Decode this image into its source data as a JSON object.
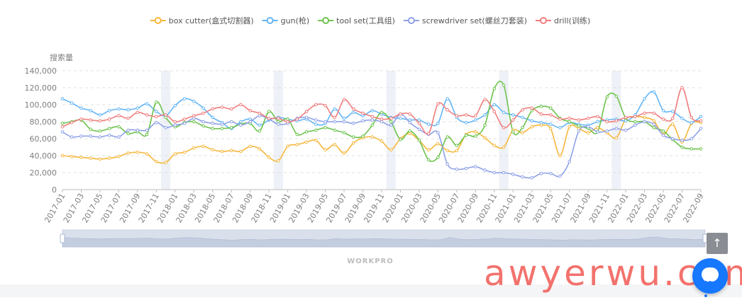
{
  "colors": {
    "box_cutter": "#f6b73c",
    "gun": "#64b5f6",
    "tool_set": "#6cc34d",
    "screwdriver_set": "#8fa2e8",
    "drill": "#f07d7d",
    "axis_text": "#7f7f7f",
    "grid": "#e0e0e0",
    "highlight_band": "#eef1f7",
    "zoom_fill": "#d9e0ec",
    "zoom_handle": "#a8b8d0",
    "watermark": "#f15a54"
  },
  "brand_label": "WORKPRO",
  "watermark_text": "awyerwu.com",
  "back_to_top_icon": "arrow-up-icon",
  "chat_icon": "chat-bubble-icon",
  "chart_data": {
    "type": "line",
    "title": "",
    "ylabel": "搜索量",
    "xlabel": "",
    "ylim": [
      0,
      140000
    ],
    "yticks": [
      "0",
      "20,000",
      "40,000",
      "60,000",
      "80,000",
      "100,000",
      "120,000",
      "140,000"
    ],
    "ytick_values": [
      0,
      20000,
      40000,
      60000,
      80000,
      100000,
      120000,
      140000
    ],
    "legend_position": "top-center",
    "grid": "horizontal dashed",
    "x": [
      "2017-01",
      "2017-02",
      "2017-03",
      "2017-04",
      "2017-05",
      "2017-06",
      "2017-07",
      "2017-08",
      "2017-09",
      "2017-10",
      "2017-11",
      "2017-12",
      "2018-01",
      "2018-02",
      "2018-03",
      "2018-04",
      "2018-05",
      "2018-06",
      "2018-07",
      "2018-08",
      "2018-09",
      "2018-10",
      "2018-11",
      "2018-12",
      "2019-01",
      "2019-02",
      "2019-03",
      "2019-04",
      "2019-05",
      "2019-06",
      "2019-07",
      "2019-08",
      "2019-09",
      "2019-10",
      "2019-11",
      "2019-12",
      "2020-01",
      "2020-02",
      "2020-03",
      "2020-04",
      "2020-05",
      "2020-06",
      "2020-07",
      "2020-08",
      "2020-09",
      "2020-10",
      "2020-11",
      "2020-12",
      "2021-01",
      "2021-02",
      "2021-03",
      "2021-04",
      "2021-05",
      "2021-06",
      "2021-07",
      "2021-08",
      "2021-09",
      "2021-10",
      "2021-11",
      "2021-12",
      "2022-01",
      "2022-02",
      "2022-03",
      "2022-04",
      "2022-05",
      "2022-06",
      "2022-07",
      "2022-08",
      "2022-09"
    ],
    "xtick_labels": [
      "2017-01",
      "2017-03",
      "2017-05",
      "2017-07",
      "2017-09",
      "2017-11",
      "2018-01",
      "2018-03",
      "2018-05",
      "2018-07",
      "2018-09",
      "2018-11",
      "2019-01",
      "2019-03",
      "2019-05",
      "2019-07",
      "2019-09",
      "2019-11",
      "2020-01",
      "2020-03",
      "2020-05",
      "2020-07",
      "2020-09",
      "2020-11",
      "2021-01",
      "2021-03",
      "2021-05",
      "2021-07",
      "2021-09",
      "2021-11",
      "2022-01",
      "2022-03",
      "2022-05",
      "2022-07",
      "2022-09"
    ],
    "highlight_months": [
      "2017-12",
      "2018-12",
      "2019-12",
      "2020-12",
      "2021-12"
    ],
    "series": [
      {
        "name": "box cutter(盒式切割器)",
        "key": "box_cutter",
        "values": [
          40000,
          39000,
          38000,
          37000,
          36000,
          37000,
          39000,
          43000,
          44000,
          42000,
          33000,
          32000,
          42000,
          44000,
          49000,
          51000,
          47000,
          45000,
          46000,
          45000,
          51000,
          48000,
          38000,
          34000,
          51000,
          53000,
          56000,
          58000,
          47000,
          53000,
          43000,
          55000,
          61000,
          62000,
          57000,
          47000,
          60000,
          66000,
          58000,
          47000,
          54000,
          46000,
          46000,
          65000,
          68000,
          61000,
          52000,
          50000,
          70000,
          67000,
          74000,
          76000,
          72000,
          40000,
          74000,
          72000,
          67000,
          73000,
          67000,
          61000,
          83000,
          86000,
          85000,
          81000,
          65000,
          77000,
          56000,
          78000,
          79000
        ]
      },
      {
        "name": "gun(枪)",
        "key": "gun",
        "values": [
          107000,
          102000,
          96000,
          93000,
          88000,
          93000,
          95000,
          94000,
          96000,
          101000,
          92000,
          87000,
          99000,
          107000,
          104000,
          96000,
          85000,
          79000,
          72000,
          80000,
          83000,
          76000,
          82000,
          85000,
          83000,
          81000,
          83000,
          77000,
          78000,
          95000,
          84000,
          91000,
          87000,
          93000,
          89000,
          85000,
          84000,
          82000,
          82000,
          77000,
          78000,
          107000,
          85000,
          79000,
          82000,
          88000,
          100000,
          91000,
          88000,
          85000,
          81000,
          79000,
          77000,
          73000,
          79000,
          77000,
          76000,
          80000,
          82000,
          83000,
          81000,
          88000,
          107000,
          115000,
          93000,
          92000,
          84000,
          79000,
          86000
        ]
      },
      {
        "name": "tool set(工具组)",
        "key": "tool_set",
        "values": [
          78000,
          80000,
          82000,
          71000,
          69000,
          72000,
          74000,
          66000,
          68000,
          65000,
          103000,
          85000,
          74000,
          79000,
          80000,
          75000,
          72000,
          72000,
          73000,
          77000,
          78000,
          69000,
          92000,
          80000,
          83000,
          65000,
          68000,
          70000,
          73000,
          70000,
          67000,
          62000,
          63000,
          76000,
          91000,
          80000,
          59000,
          69000,
          58000,
          35000,
          38000,
          62000,
          52000,
          64000,
          63000,
          76000,
          119000,
          123000,
          68000,
          73000,
          93000,
          98000,
          96000,
          84000,
          80000,
          75000,
          72000,
          68000,
          109000,
          110000,
          84000,
          80000,
          80000,
          73000,
          69000,
          59000,
          50000,
          48000,
          48000
        ]
      },
      {
        "name": "screwdriver set(螺丝刀套装)",
        "key": "screwdriver_set",
        "values": [
          68000,
          62000,
          63000,
          63000,
          62000,
          64000,
          62000,
          70000,
          70000,
          70000,
          79000,
          73000,
          76000,
          78000,
          84000,
          80000,
          78000,
          77000,
          80000,
          76000,
          80000,
          87000,
          83000,
          77000,
          78000,
          84000,
          85000,
          82000,
          80000,
          80000,
          80000,
          78000,
          81000,
          82000,
          80000,
          76000,
          89000,
          79000,
          71000,
          65000,
          67000,
          30000,
          24000,
          25000,
          27000,
          23000,
          20000,
          20000,
          18000,
          15000,
          14000,
          19000,
          19000,
          16000,
          33000,
          69000,
          74000,
          68000,
          69000,
          72000,
          70000,
          76000,
          80000,
          77000,
          64000,
          60000,
          58000,
          60000,
          72000
        ]
      },
      {
        "name": "drill(训练)",
        "key": "drill",
        "values": [
          74000,
          79000,
          83000,
          82000,
          81000,
          83000,
          87000,
          84000,
          91000,
          88000,
          86000,
          88000,
          80000,
          83000,
          87000,
          90000,
          95000,
          97000,
          95000,
          100000,
          93000,
          90000,
          84000,
          84000,
          80000,
          83000,
          92000,
          100000,
          99000,
          85000,
          106000,
          95000,
          90000,
          86000,
          83000,
          84000,
          89000,
          89000,
          78000,
          66000,
          101000,
          94000,
          87000,
          88000,
          87000,
          106000,
          92000,
          73000,
          82000,
          94000,
          96000,
          89000,
          88000,
          83000,
          84000,
          82000,
          84000,
          86000,
          80000,
          81000,
          85000,
          86000,
          90000,
          90000,
          83000,
          84000,
          120000,
          85000,
          81000
        ]
      }
    ]
  }
}
